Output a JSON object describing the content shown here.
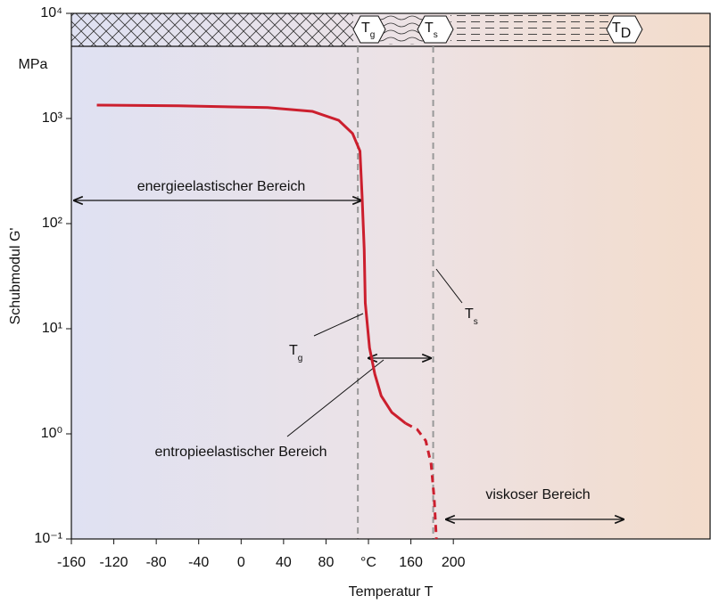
{
  "chart_data": {
    "type": "line",
    "y_label": "Schubmodul G'",
    "y_unit": "MPa",
    "x_label": "Temperatur T",
    "log_y": true,
    "xlim": [
      -160,
      442
    ],
    "xticks": [
      -160,
      -120,
      -80,
      -40,
      0,
      40,
      80,
      {
        "value": 120,
        "label": "°C"
      },
      160,
      200
    ],
    "ylim": [
      0.1,
      10000
    ],
    "yticks": [
      {
        "value": 0.1,
        "label": "10⁻¹"
      },
      {
        "value": 1,
        "label": "10⁰"
      },
      {
        "value": 10,
        "label": "10¹"
      },
      {
        "value": 100,
        "label": "10²"
      },
      {
        "value": 1000,
        "label": "10³"
      },
      {
        "value": 10000,
        "label": "10⁴"
      }
    ],
    "series": [
      {
        "color": "#cc1f2e",
        "style": "solid",
        "x": [
          -136,
          -59,
          25,
          67,
          92,
          105,
          112,
          114,
          116,
          117,
          121,
          126,
          132,
          142,
          155
        ],
        "values": [
          1340,
          1320,
          1270,
          1170,
          960,
          720,
          490,
          183,
          57,
          17.6,
          6.6,
          3.7,
          2.3,
          1.6,
          1.26
        ]
      },
      {
        "color": "#cc1f2e",
        "style": "dashed",
        "x": [
          155,
          166,
          174,
          179,
          182,
          184
        ],
        "values": [
          1.26,
          1.1,
          0.86,
          0.52,
          0.24,
          0.1
        ]
      }
    ],
    "markers": [
      {
        "x": 110,
        "label": "T",
        "sub": "g"
      },
      {
        "x": 181,
        "label": "T",
        "sub": "s"
      }
    ],
    "band_labels": [
      {
        "label": "T",
        "sub": "g"
      },
      {
        "label": "T",
        "sub": "s"
      },
      {
        "label": "T",
        "sub": "D"
      }
    ],
    "regions": [
      "energieelastischer Bereich",
      "entropieelastischer Bereich",
      "viskoser Bereich"
    ]
  }
}
